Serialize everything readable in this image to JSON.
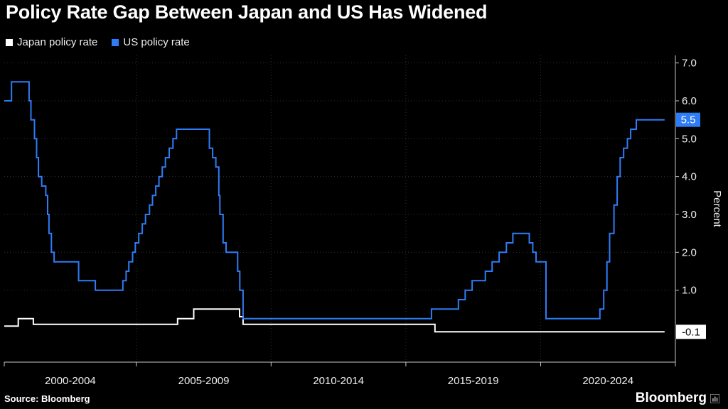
{
  "title": "Policy Rate Gap Between Japan and US Has Widened",
  "legend": [
    {
      "label": "Japan policy rate",
      "color": "#ffffff"
    },
    {
      "label": "US policy rate",
      "color": "#2E7CF6"
    }
  ],
  "source": "Source: Bloomberg",
  "brand": "Bloomberg",
  "chart_data": {
    "type": "line",
    "step": true,
    "title": "Policy Rate Gap Between Japan and US Has Widened",
    "ylabel": "Percent",
    "xlabel": "",
    "x_range": [
      2000.1,
      2025.0
    ],
    "ylim": [
      -0.9,
      7.2
    ],
    "yticks": [
      7.0,
      6.0,
      5.0,
      4.0,
      3.0,
      2.0,
      1.0
    ],
    "ytick_labels": [
      "7.0",
      "6.0",
      "5.0",
      "4.0",
      "3.0",
      "2.0",
      "1.0"
    ],
    "x_gridlines": [
      2005,
      2010,
      2015,
      2020
    ],
    "x_section_labels": [
      "2000-2004",
      "2005-2009",
      "2010-2014",
      "2015-2019",
      "2020-2024"
    ],
    "legend_position": "top-left",
    "grid": true,
    "colors": {
      "grid": "#2e2e2e",
      "axis": "#c8c8c8",
      "text": "#f0f0f0"
    },
    "series": [
      {
        "id": "japan-policy-rate",
        "name": "Japan policy rate",
        "color": "#ffffff",
        "last_label": "-0.1",
        "badge_bg": "#ffffff",
        "badge_fg": "#000000",
        "points": [
          [
            2000.1,
            0.05
          ],
          [
            2000.62,
            0.25
          ],
          [
            2001.18,
            0.1
          ],
          [
            2006.53,
            0.25
          ],
          [
            2007.13,
            0.5
          ],
          [
            2008.83,
            0.3
          ],
          [
            2008.96,
            0.1
          ],
          [
            2016.08,
            -0.1
          ],
          [
            2024.6,
            -0.1
          ]
        ]
      },
      {
        "id": "us-policy-rate",
        "name": "US policy rate",
        "color": "#2E7CF6",
        "last_label": "5.5",
        "badge_bg": "#2E7CF6",
        "badge_fg": "#ffffff",
        "points": [
          [
            2000.1,
            6.0
          ],
          [
            2000.37,
            6.5
          ],
          [
            2001.02,
            6.0
          ],
          [
            2001.09,
            5.5
          ],
          [
            2001.22,
            5.0
          ],
          [
            2001.3,
            4.5
          ],
          [
            2001.37,
            4.0
          ],
          [
            2001.49,
            3.75
          ],
          [
            2001.64,
            3.5
          ],
          [
            2001.71,
            3.0
          ],
          [
            2001.76,
            2.5
          ],
          [
            2001.85,
            2.0
          ],
          [
            2001.95,
            1.75
          ],
          [
            2002.86,
            1.25
          ],
          [
            2003.48,
            1.0
          ],
          [
            2004.5,
            1.25
          ],
          [
            2004.62,
            1.5
          ],
          [
            2004.72,
            1.75
          ],
          [
            2004.86,
            2.0
          ],
          [
            2004.96,
            2.25
          ],
          [
            2005.09,
            2.5
          ],
          [
            2005.22,
            2.75
          ],
          [
            2005.34,
            3.0
          ],
          [
            2005.49,
            3.25
          ],
          [
            2005.6,
            3.5
          ],
          [
            2005.72,
            3.75
          ],
          [
            2005.84,
            4.0
          ],
          [
            2005.96,
            4.25
          ],
          [
            2006.08,
            4.5
          ],
          [
            2006.22,
            4.75
          ],
          [
            2006.36,
            5.0
          ],
          [
            2006.49,
            5.25
          ],
          [
            2007.71,
            4.75
          ],
          [
            2007.83,
            4.5
          ],
          [
            2007.95,
            4.25
          ],
          [
            2008.06,
            3.5
          ],
          [
            2008.1,
            3.0
          ],
          [
            2008.22,
            2.25
          ],
          [
            2008.33,
            2.0
          ],
          [
            2008.76,
            1.5
          ],
          [
            2008.84,
            1.0
          ],
          [
            2008.96,
            0.25
          ],
          [
            2015.95,
            0.5
          ],
          [
            2016.95,
            0.75
          ],
          [
            2017.2,
            1.0
          ],
          [
            2017.46,
            1.25
          ],
          [
            2017.95,
            1.5
          ],
          [
            2018.2,
            1.75
          ],
          [
            2018.46,
            2.0
          ],
          [
            2018.73,
            2.25
          ],
          [
            2018.97,
            2.5
          ],
          [
            2019.58,
            2.25
          ],
          [
            2019.71,
            2.0
          ],
          [
            2019.83,
            1.75
          ],
          [
            2020.2,
            0.25
          ],
          [
            2022.2,
            0.5
          ],
          [
            2022.34,
            1.0
          ],
          [
            2022.46,
            1.75
          ],
          [
            2022.56,
            2.5
          ],
          [
            2022.72,
            3.25
          ],
          [
            2022.84,
            4.0
          ],
          [
            2022.95,
            4.5
          ],
          [
            2023.08,
            4.75
          ],
          [
            2023.22,
            5.0
          ],
          [
            2023.34,
            5.25
          ],
          [
            2023.55,
            5.5
          ],
          [
            2024.6,
            5.5
          ]
        ]
      }
    ]
  }
}
